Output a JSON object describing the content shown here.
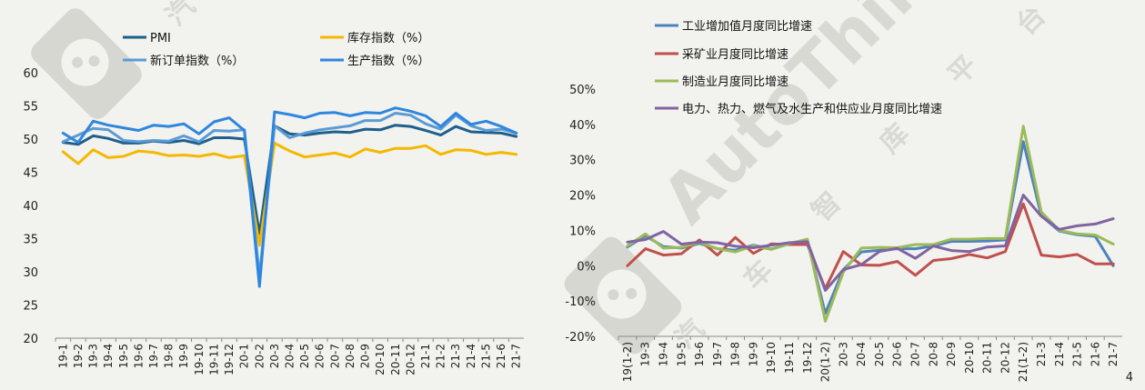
{
  "page_number": "4",
  "watermark": {
    "brand": "AutoThinker",
    "chars": [
      "汽",
      "车",
      "智",
      "库",
      "平",
      "台"
    ]
  },
  "colors": {
    "pmi": "#1f5f8b",
    "inventory": "#f5b800",
    "new_orders": "#5b9bd5",
    "production": "#2e86de",
    "mining": "#c0504d",
    "manufacturing": "#9bbb59",
    "utilities": "#8064a2",
    "industrial": "#4f81bd"
  },
  "chart_data": [
    {
      "type": "line",
      "title": "",
      "xlabel": "",
      "ylabel": "",
      "ylim": [
        20,
        60
      ],
      "yticks": [
        "20",
        "25",
        "30",
        "35",
        "40",
        "45",
        "50",
        "55",
        "60"
      ],
      "grid": false,
      "legend": "top",
      "x": [
        "19-1",
        "19-2",
        "19-3",
        "19-4",
        "19-5",
        "19-6",
        "19-7",
        "19-8",
        "19-9",
        "19-10",
        "19-11",
        "19-12",
        "20-1",
        "20-2",
        "20-3",
        "20-4",
        "20-5",
        "20-6",
        "20-7",
        "20-8",
        "20-9",
        "20-10",
        "20-11",
        "20-12",
        "21-1",
        "21-2",
        "21-3",
        "21-4",
        "21-5",
        "21-6",
        "21-7"
      ],
      "series": [
        {
          "name": "PMI",
          "color_key": "pmi",
          "values": [
            49.5,
            49.2,
            50.5,
            50.1,
            49.4,
            49.4,
            49.7,
            49.5,
            49.8,
            49.3,
            50.2,
            50.2,
            50.0,
            35.7,
            52.0,
            50.8,
            50.6,
            50.9,
            51.1,
            51.0,
            51.5,
            51.4,
            52.1,
            51.9,
            51.3,
            50.6,
            51.9,
            51.1,
            51.0,
            50.9,
            50.4
          ]
        },
        {
          "name": "库存指数（%）",
          "color_key": "inventory",
          "values": [
            48.1,
            46.3,
            48.4,
            47.2,
            47.4,
            48.2,
            48.0,
            47.5,
            47.6,
            47.4,
            47.8,
            47.2,
            47.5,
            34.0,
            49.4,
            48.2,
            47.3,
            47.6,
            47.9,
            47.3,
            48.5,
            48.0,
            48.6,
            48.6,
            49.0,
            47.7,
            48.4,
            48.3,
            47.7,
            48.0,
            47.7
          ]
        },
        {
          "name": "新订单指数（%）",
          "color_key": "new_orders",
          "values": [
            49.6,
            50.6,
            51.6,
            51.4,
            49.8,
            49.6,
            49.8,
            49.7,
            50.5,
            49.6,
            51.3,
            51.2,
            51.4,
            29.3,
            52.0,
            50.2,
            50.9,
            51.4,
            51.7,
            52.0,
            52.8,
            52.8,
            53.9,
            53.6,
            52.3,
            51.5,
            53.6,
            52.0,
            51.3,
            51.5,
            50.9
          ]
        },
        {
          "name": "生产指数（%）",
          "color_key": "production",
          "values": [
            50.9,
            49.5,
            52.7,
            52.1,
            51.7,
            51.3,
            52.1,
            51.9,
            52.3,
            50.8,
            52.6,
            53.2,
            51.3,
            27.8,
            54.1,
            53.7,
            53.2,
            53.9,
            54.0,
            53.5,
            54.0,
            53.9,
            54.7,
            54.2,
            53.5,
            51.9,
            53.9,
            52.2,
            52.7,
            51.9,
            50.9
          ]
        }
      ]
    },
    {
      "type": "line",
      "title": "",
      "xlabel": "",
      "ylabel": "",
      "ylim": [
        -20,
        50
      ],
      "yticks": [
        "-20%",
        "-10%",
        "0%",
        "10%",
        "20%",
        "30%",
        "40%",
        "50%"
      ],
      "grid": false,
      "legend": "top-left",
      "x": [
        "19(1-2)",
        "19-3",
        "19-4",
        "19-5",
        "19-6",
        "19-7",
        "19-8",
        "19-9",
        "19-10",
        "19-11",
        "19-12",
        "20(1-2)",
        "20-3",
        "20-4",
        "20-5",
        "20-6",
        "20-7",
        "20-8",
        "20-9",
        "20-10",
        "20-11",
        "20-12",
        "21(1-2)",
        "21-3",
        "21-4",
        "21-5",
        "21-6",
        "21-7"
      ],
      "series": [
        {
          "name": "工业增加值月度同比增速",
          "color_key": "industrial",
          "values": [
            5.3,
            8.5,
            5.4,
            5.0,
            6.3,
            4.8,
            4.4,
            5.8,
            4.7,
            6.2,
            6.9,
            -13.5,
            -1.1,
            3.9,
            4.4,
            4.8,
            4.8,
            5.6,
            6.9,
            6.9,
            7.0,
            7.3,
            35.1,
            14.1,
            9.8,
            8.8,
            8.3,
            0.0
          ]
        },
        {
          "name": "采矿业月度同比增速",
          "color_key": "mining",
          "values": [
            0.0,
            4.8,
            3.0,
            3.4,
            7.3,
            3.0,
            8.0,
            3.5,
            6.2,
            6.0,
            6.0,
            -6.5,
            4.0,
            0.2,
            0.1,
            1.2,
            -2.7,
            1.5,
            2.0,
            3.2,
            2.2,
            4.0,
            17.5,
            3.0,
            2.5,
            3.2,
            0.5,
            0.5
          ]
        },
        {
          "name": "制造业月度同比增速",
          "color_key": "manufacturing",
          "values": [
            5.6,
            9.0,
            5.0,
            5.2,
            6.6,
            4.8,
            3.9,
            5.6,
            4.6,
            6.3,
            7.5,
            -15.7,
            -1.8,
            5.0,
            5.2,
            5.1,
            6.0,
            6.0,
            7.5,
            7.5,
            7.7,
            7.7,
            39.5,
            15.2,
            10.0,
            9.0,
            8.7,
            6.1
          ]
        },
        {
          "name": "电力、热力、燃气及水生产和供应业月度同比增速",
          "color_key": "utilities",
          "values": [
            6.7,
            7.4,
            9.7,
            6.1,
            6.7,
            6.5,
            5.5,
            5.1,
            5.8,
            6.5,
            6.8,
            -7.0,
            -1.1,
            0.3,
            4.0,
            4.9,
            2.1,
            5.6,
            4.3,
            4.0,
            5.3,
            5.6,
            20.0,
            14.0,
            10.3,
            11.3,
            11.8,
            13.3
          ]
        }
      ]
    }
  ]
}
